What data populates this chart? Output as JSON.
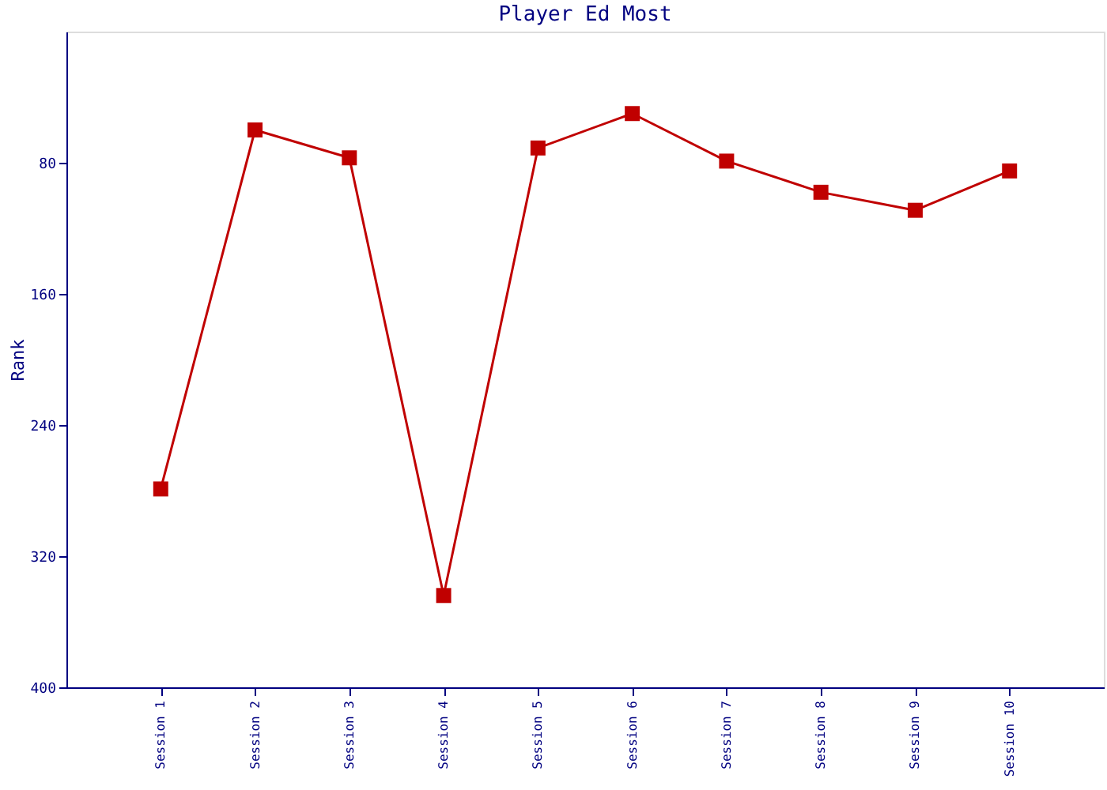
{
  "chart_data": {
    "type": "line",
    "title": "Player Ed Most",
    "ylabel": "Rank",
    "categories": [
      "Session 1",
      "Session 2",
      "Session 3",
      "Session 4",
      "Session 5",
      "Session 6",
      "Session 7",
      "Session 8",
      "Session 9",
      "Session 10"
    ],
    "series": [
      {
        "color": "#c00000",
        "values": [
          279,
          60,
          77,
          344,
          71,
          50,
          79,
          98,
          109,
          85
        ]
      }
    ],
    "ylim": [
      400,
      0
    ],
    "yticks": [
      80,
      160,
      240,
      320,
      400
    ],
    "grid": false,
    "marker": "square",
    "line_style": "solid"
  }
}
